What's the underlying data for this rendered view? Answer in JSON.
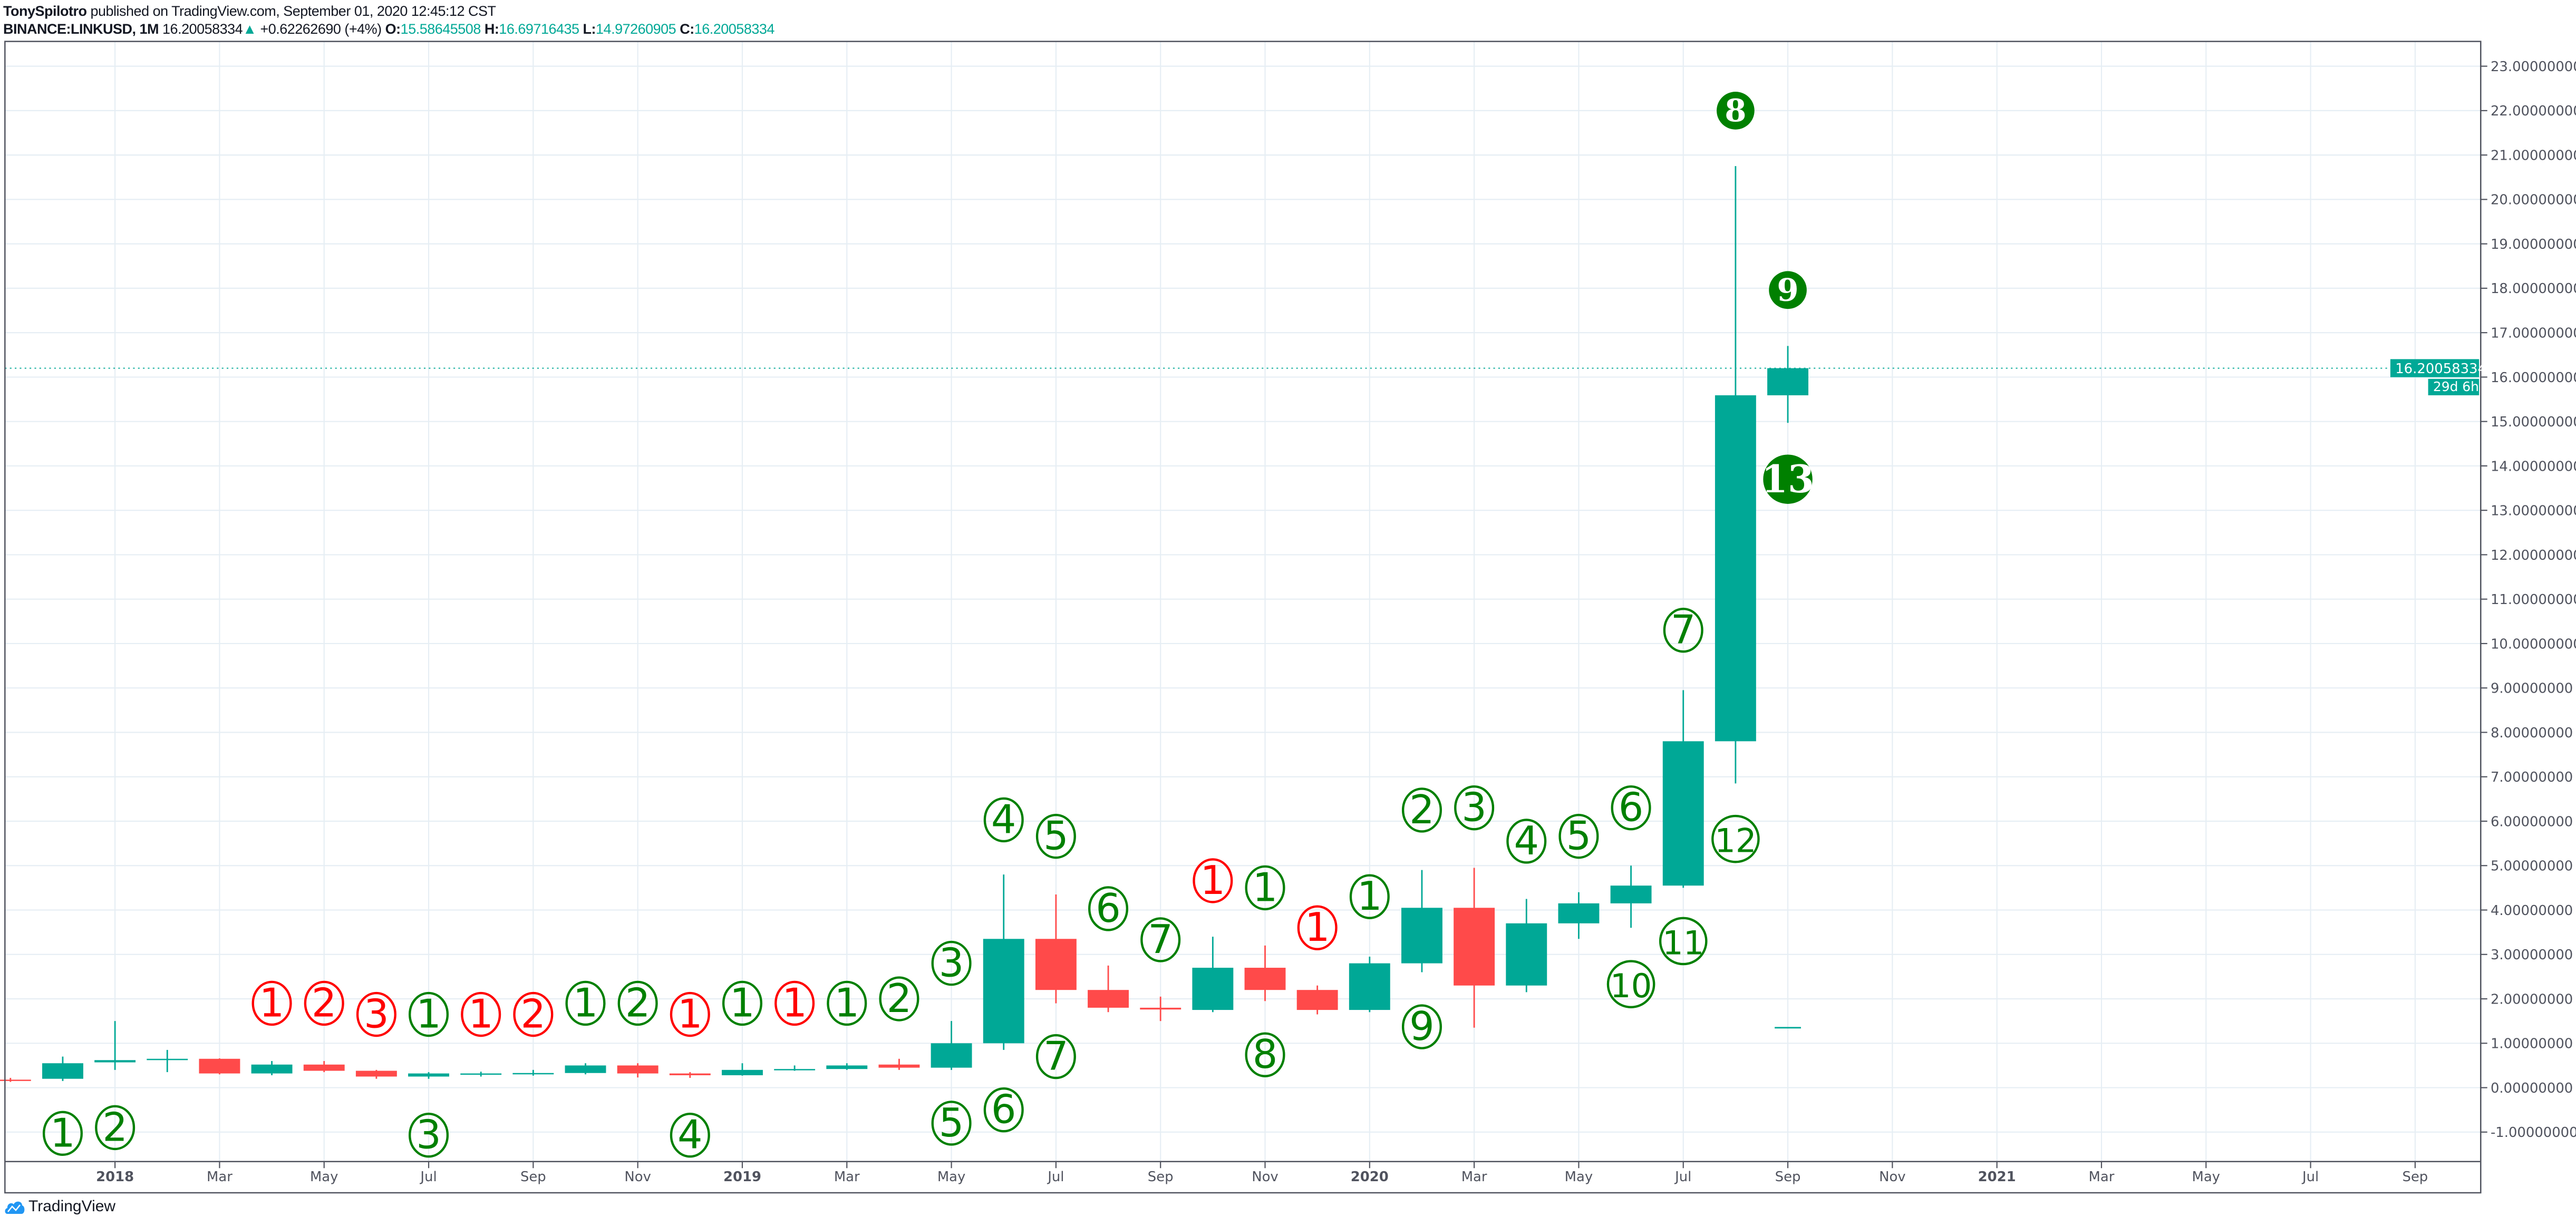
{
  "header": {
    "author": "TonySpilotro",
    "published": "published on TradingView.com, September 01, 2020 12:45:12 CST",
    "symbol": "BINANCE:LINKUSD, 1M",
    "last": "16.20058334",
    "change": "+0.62262690 (+4%)",
    "o_label": "O:",
    "o": "15.58645508",
    "h_label": "H:",
    "h": "16.69716435",
    "l_label": "L:",
    "l": "14.97260905",
    "c_label": "C:",
    "c": "16.20058334"
  },
  "price_tag": {
    "value": "16.20058334",
    "countdown": "29d 6h"
  },
  "logo": {
    "text": "TradingView"
  },
  "colors": {
    "up": "#00a896",
    "down": "#ff4a4a",
    "td_green": "#008000",
    "td_red": "#ff0000",
    "grid": "#e6eef4",
    "logo_blue": "#2196f3"
  },
  "chart_data": {
    "type": "candlestick",
    "title": "",
    "ylim": [
      -1.6,
      24
    ],
    "grid": true,
    "y_ticks": [
      "-1.00000000",
      "0.00000000",
      "1.00000000",
      "2.00000000",
      "3.00000000",
      "4.00000000",
      "5.00000000",
      "6.00000000",
      "7.00000000",
      "8.00000000",
      "9.00000000",
      "10.00000000",
      "11.00000000",
      "12.00000000",
      "13.00000000",
      "14.00000000",
      "15.00000000",
      "16.00000000",
      "17.00000000",
      "18.00000000",
      "19.00000000",
      "20.00000000",
      "21.00000000",
      "22.00000000",
      "23.00000000"
    ],
    "x_ticks": [
      "2018",
      "Mar",
      "May",
      "Jul",
      "Sep",
      "Nov",
      "2019",
      "Mar",
      "May",
      "Jul",
      "Sep",
      "Nov",
      "2020",
      "Mar",
      "May",
      "Jul",
      "Sep",
      "Nov",
      "2021",
      "Mar",
      "May",
      "Jul",
      "Sep"
    ],
    "months": [
      "2017-11",
      "2017-12",
      "2018-01",
      "2018-02",
      "2018-03",
      "2018-04",
      "2018-05",
      "2018-06",
      "2018-07",
      "2018-08",
      "2018-09",
      "2018-10",
      "2018-11",
      "2018-12",
      "2019-01",
      "2019-02",
      "2019-03",
      "2019-04",
      "2019-05",
      "2019-06",
      "2019-07",
      "2019-08",
      "2019-09",
      "2019-10",
      "2019-11",
      "2019-12",
      "2020-01",
      "2020-02",
      "2020-03",
      "2020-04",
      "2020-05",
      "2020-06",
      "2020-07",
      "2020-08",
      "2020-09"
    ],
    "ohlc": [
      [
        0.18,
        0.22,
        0.13,
        0.17
      ],
      [
        0.2,
        0.7,
        0.15,
        0.55
      ],
      [
        0.57,
        1.5,
        0.4,
        0.62
      ],
      [
        0.62,
        0.85,
        0.35,
        0.65
      ],
      [
        0.65,
        0.66,
        0.3,
        0.32
      ],
      [
        0.32,
        0.6,
        0.28,
        0.52
      ],
      [
        0.52,
        0.6,
        0.35,
        0.38
      ],
      [
        0.38,
        0.4,
        0.2,
        0.25
      ],
      [
        0.25,
        0.35,
        0.2,
        0.32
      ],
      [
        0.3,
        0.36,
        0.25,
        0.32
      ],
      [
        0.3,
        0.4,
        0.27,
        0.33
      ],
      [
        0.33,
        0.55,
        0.3,
        0.5
      ],
      [
        0.5,
        0.55,
        0.23,
        0.32
      ],
      [
        0.32,
        0.35,
        0.22,
        0.28
      ],
      [
        0.28,
        0.55,
        0.27,
        0.4
      ],
      [
        0.4,
        0.5,
        0.38,
        0.42
      ],
      [
        0.42,
        0.55,
        0.4,
        0.5
      ],
      [
        0.52,
        0.65,
        0.4,
        0.45
      ],
      [
        0.45,
        1.5,
        0.4,
        1.0
      ],
      [
        1.0,
        4.8,
        0.85,
        3.35
      ],
      [
        3.35,
        4.35,
        1.9,
        2.2
      ],
      [
        2.2,
        2.75,
        1.7,
        1.8
      ],
      [
        1.8,
        2.05,
        1.5,
        1.76
      ],
      [
        1.75,
        3.4,
        1.7,
        2.7
      ],
      [
        2.7,
        3.2,
        1.95,
        2.2
      ],
      [
        2.2,
        2.3,
        1.65,
        1.75
      ],
      [
        1.75,
        2.95,
        1.7,
        2.8
      ],
      [
        2.8,
        4.9,
        2.6,
        4.05
      ],
      [
        4.05,
        4.95,
        1.35,
        2.3
      ],
      [
        2.3,
        4.25,
        2.15,
        3.7
      ],
      [
        3.7,
        4.4,
        3.35,
        4.15
      ],
      [
        4.15,
        5.0,
        3.6,
        4.55
      ],
      [
        4.55,
        8.95,
        4.5,
        7.8
      ],
      [
        7.8,
        20.75,
        6.85,
        15.59
      ],
      [
        15.59,
        16.7,
        14.97,
        16.2
      ]
    ],
    "extra_mark": {
      "month": "2020-09",
      "value": 1.35
    },
    "current_price": 16.20058334,
    "td_labels": [
      {
        "month": "2017-12",
        "text": "1",
        "color": "green",
        "style": "outline",
        "y": -1.03
      },
      {
        "month": "2018-01",
        "text": "2",
        "color": "green",
        "style": "outline",
        "y": -0.9
      },
      {
        "month": "2018-04",
        "text": "1",
        "color": "red",
        "style": "outline",
        "y": 1.9
      },
      {
        "month": "2018-05",
        "text": "2",
        "color": "red",
        "style": "outline",
        "y": 1.9
      },
      {
        "month": "2018-06",
        "text": "3",
        "color": "red",
        "style": "outline",
        "y": 1.65
      },
      {
        "month": "2018-07",
        "text": "1",
        "color": "green",
        "style": "outline",
        "y": 1.65
      },
      {
        "month": "2018-07",
        "text": "3",
        "color": "green",
        "style": "outline",
        "y": -1.07
      },
      {
        "month": "2018-08",
        "text": "1",
        "color": "red",
        "style": "outline",
        "y": 1.65
      },
      {
        "month": "2018-09",
        "text": "2",
        "color": "red",
        "style": "outline",
        "y": 1.65
      },
      {
        "month": "2018-10",
        "text": "1",
        "color": "green",
        "style": "outline",
        "y": 1.9
      },
      {
        "month": "2018-11",
        "text": "2",
        "color": "green",
        "style": "outline",
        "y": 1.9
      },
      {
        "month": "2018-12",
        "text": "1",
        "color": "red",
        "style": "outline",
        "y": 1.65
      },
      {
        "month": "2018-12",
        "text": "4",
        "color": "green",
        "style": "outline",
        "y": -1.07
      },
      {
        "month": "2019-01",
        "text": "1",
        "color": "green",
        "style": "outline",
        "y": 1.9
      },
      {
        "month": "2019-02",
        "text": "1",
        "color": "red",
        "style": "outline",
        "y": 1.9
      },
      {
        "month": "2019-03",
        "text": "1",
        "color": "green",
        "style": "outline",
        "y": 1.9
      },
      {
        "month": "2019-04",
        "text": "2",
        "color": "green",
        "style": "outline",
        "y": 2.0
      },
      {
        "month": "2019-05",
        "text": "3",
        "color": "green",
        "style": "outline",
        "y": 2.8
      },
      {
        "month": "2019-05",
        "text": "5",
        "color": "green",
        "style": "outline",
        "y": -0.8
      },
      {
        "month": "2019-06",
        "text": "4",
        "color": "green",
        "style": "outline",
        "y": 6.03
      },
      {
        "month": "2019-06",
        "text": "6",
        "color": "green",
        "style": "outline",
        "y": -0.5
      },
      {
        "month": "2019-07",
        "text": "5",
        "color": "green",
        "style": "outline",
        "y": 5.66
      },
      {
        "month": "2019-07",
        "text": "7",
        "color": "green",
        "style": "outline",
        "y": 0.7
      },
      {
        "month": "2019-08",
        "text": "6",
        "color": "green",
        "style": "outline",
        "y": 4.03
      },
      {
        "month": "2019-09",
        "text": "7",
        "color": "green",
        "style": "outline",
        "y": 3.33
      },
      {
        "month": "2019-10",
        "text": "1",
        "color": "red",
        "style": "outline",
        "y": 4.66
      },
      {
        "month": "2019-11",
        "text": "1",
        "color": "green",
        "style": "outline",
        "y": 4.5
      },
      {
        "month": "2019-11",
        "text": "8",
        "color": "green",
        "style": "outline",
        "y": 0.74
      },
      {
        "month": "2019-12",
        "text": "1",
        "color": "red",
        "style": "outline",
        "y": 3.6
      },
      {
        "month": "2020-01",
        "text": "1",
        "color": "green",
        "style": "outline",
        "y": 4.3
      },
      {
        "month": "2020-02",
        "text": "2",
        "color": "green",
        "style": "outline",
        "y": 6.25
      },
      {
        "month": "2020-02",
        "text": "9",
        "color": "green",
        "style": "outline",
        "y": 1.37
      },
      {
        "month": "2020-03",
        "text": "3",
        "color": "green",
        "style": "outline",
        "y": 6.3
      },
      {
        "month": "2020-04",
        "text": "4",
        "color": "green",
        "style": "outline",
        "y": 5.55
      },
      {
        "month": "2020-05",
        "text": "5",
        "color": "green",
        "style": "outline",
        "y": 5.66
      },
      {
        "month": "2020-06",
        "text": "6",
        "color": "green",
        "style": "outline",
        "y": 6.3
      },
      {
        "month": "2020-06",
        "text": "10",
        "color": "green",
        "style": "outline",
        "y": 2.33
      },
      {
        "month": "2020-07",
        "text": "7",
        "color": "green",
        "style": "outline",
        "y": 10.3
      },
      {
        "month": "2020-07",
        "text": "11",
        "color": "green",
        "style": "outline",
        "y": 3.3
      },
      {
        "month": "2020-08",
        "text": "8",
        "color": "green",
        "style": "filled",
        "y": 22.0
      },
      {
        "month": "2020-08",
        "text": "12",
        "color": "green",
        "style": "outline",
        "y": 5.6
      },
      {
        "month": "2020-09",
        "text": "9",
        "color": "green",
        "style": "filled",
        "y": 17.96
      },
      {
        "month": "2020-09",
        "text": "13",
        "color": "green",
        "style": "filled",
        "y": 13.7
      }
    ]
  }
}
